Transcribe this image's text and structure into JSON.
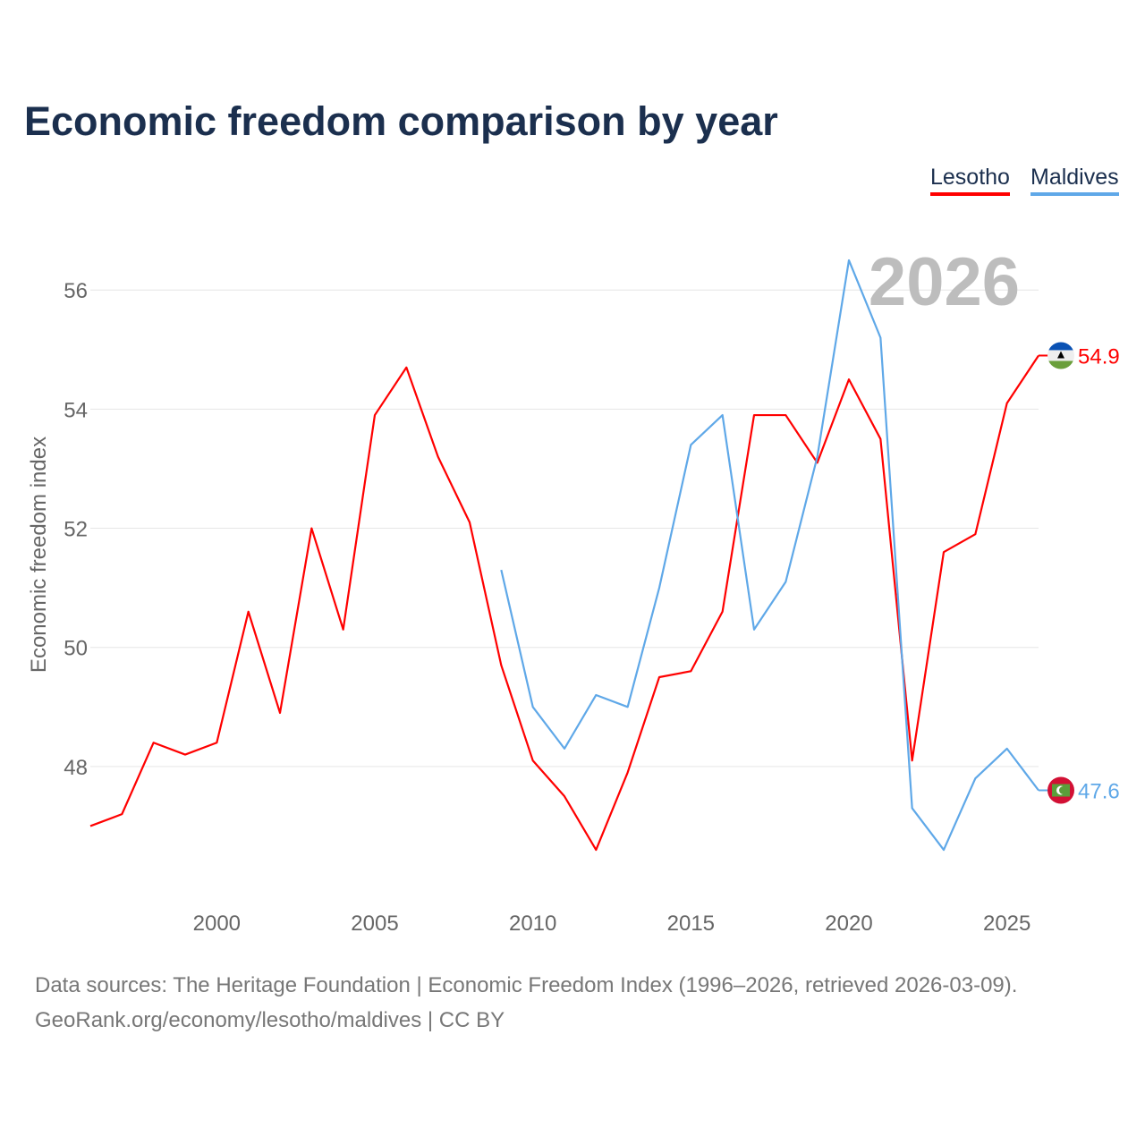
{
  "chart_data": {
    "type": "line",
    "title": "Economic freedom comparison by year",
    "xlabel": "",
    "ylabel": "Economic freedom index",
    "xlim": [
      1996,
      2026
    ],
    "ylim": [
      45.7,
      57.1
    ],
    "grid": true,
    "legend_position": "top-right",
    "year_watermark": "2026",
    "x_ticks": [
      2000,
      2005,
      2010,
      2015,
      2020,
      2025
    ],
    "y_ticks": [
      48,
      50,
      52,
      54,
      56
    ],
    "series": [
      {
        "name": "Lesotho",
        "color": "#ff0000",
        "end_label": "54.9",
        "x": [
          1996,
          1997,
          1998,
          1999,
          2000,
          2001,
          2002,
          2003,
          2004,
          2005,
          2006,
          2007,
          2008,
          2009,
          2010,
          2011,
          2012,
          2013,
          2014,
          2015,
          2016,
          2017,
          2018,
          2019,
          2020,
          2021,
          2022,
          2023,
          2024,
          2025,
          2026
        ],
        "values": [
          47.0,
          47.2,
          48.4,
          48.2,
          48.4,
          50.6,
          48.9,
          52.0,
          50.3,
          53.9,
          54.7,
          53.2,
          52.1,
          49.7,
          48.1,
          47.5,
          46.6,
          47.9,
          49.5,
          49.6,
          50.6,
          53.9,
          53.9,
          53.1,
          54.5,
          53.5,
          48.1,
          51.6,
          51.9,
          54.1,
          54.9
        ]
      },
      {
        "name": "Maldives",
        "color": "#5fa8e8",
        "end_label": "47.6",
        "x": [
          2009,
          2010,
          2011,
          2012,
          2013,
          2014,
          2015,
          2016,
          2017,
          2018,
          2019,
          2020,
          2021,
          2022,
          2023,
          2024,
          2025,
          2026
        ],
        "values": [
          51.3,
          49.0,
          48.3,
          49.2,
          49.0,
          51.0,
          53.4,
          53.9,
          50.3,
          51.1,
          53.2,
          56.5,
          55.2,
          47.3,
          46.6,
          47.8,
          48.3,
          47.6
        ]
      }
    ]
  },
  "footer": {
    "line1": "Data sources: The Heritage Foundation | Economic Freedom Index (1996–2026, retrieved 2026-03-09).",
    "line2": "GeoRank.org/economy/lesotho/maldives | CC BY"
  }
}
